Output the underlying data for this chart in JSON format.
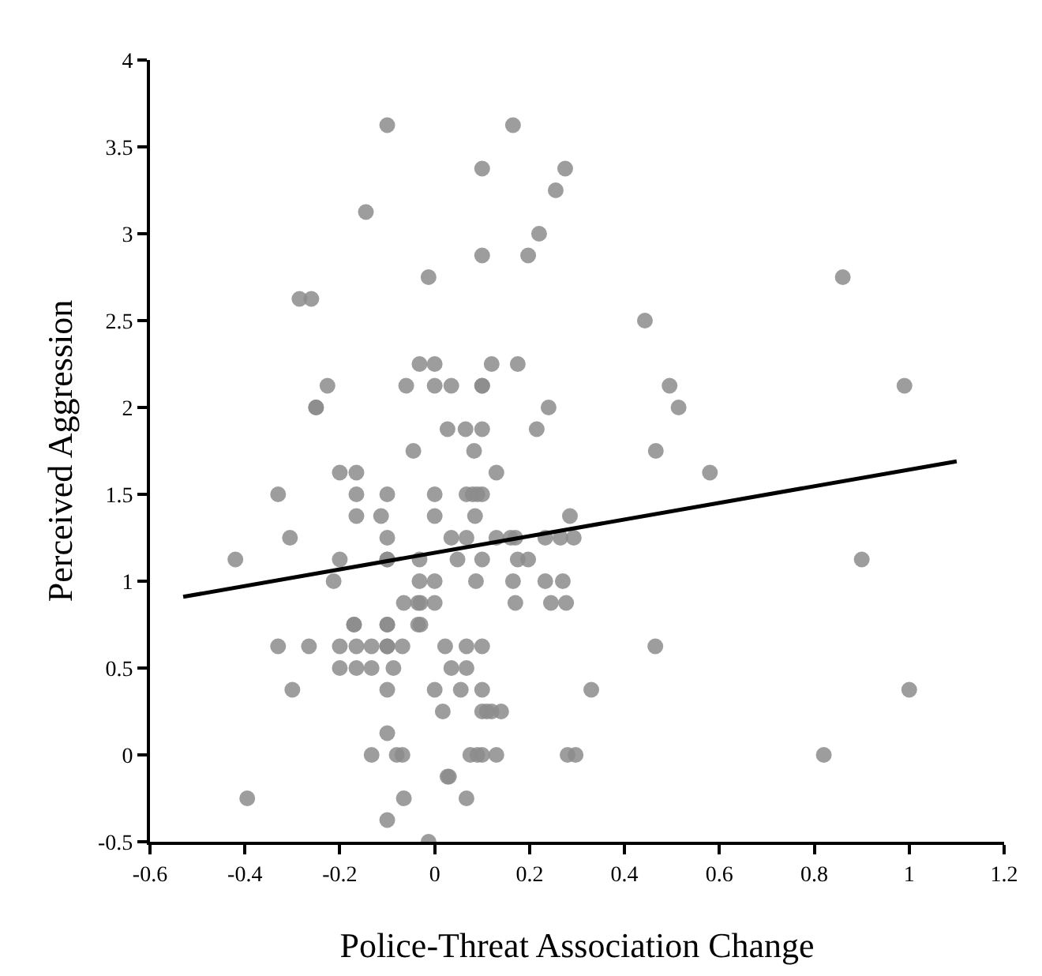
{
  "chart_data": {
    "type": "scatter",
    "xlabel": "Police-Threat Association Change",
    "ylabel": "Perceived Aggression",
    "xlim": [
      -0.6,
      1.2
    ],
    "xticks": [
      -0.6,
      -0.4,
      -0.2,
      0,
      0.2,
      0.4,
      0.6,
      0.8,
      1,
      1.2
    ],
    "ylim": [
      -0.5,
      4
    ],
    "yticks": [
      -0.5,
      0,
      0.5,
      1,
      1.5,
      2,
      2.5,
      3,
      3.5,
      4
    ],
    "grid": false,
    "legend": false,
    "marker": "circle",
    "series": [
      {
        "color": "#8c8c8c",
        "x": [
          -0.1,
          0.165,
          0.1,
          0.275,
          0.255,
          -0.145,
          0.22,
          0.1,
          0.197,
          -0.013,
          -0.285,
          -0.26,
          -0.032,
          0.0,
          0.12,
          0.175,
          -0.226,
          -0.06,
          0.0,
          0.035,
          0.1,
          0.1,
          -0.25,
          -0.25,
          0.24,
          0.027,
          0.065,
          0.1,
          0.215,
          -0.045,
          0.083,
          -0.2,
          -0.165,
          0.13,
          -0.33,
          -0.165,
          -0.1,
          0.0,
          0.067,
          0.08,
          0.09,
          0.1,
          -0.165,
          -0.113,
          0.0,
          0.085,
          0.285,
          -0.305,
          -0.1,
          0.035,
          0.067,
          0.13,
          0.16,
          0.17,
          0.233,
          0.265,
          0.293,
          -0.42,
          -0.2,
          -0.1,
          -0.1,
          -0.032,
          0.048,
          0.1,
          0.175,
          0.197,
          -0.213,
          -0.032,
          0.0,
          0.087,
          0.165,
          0.233,
          0.27,
          -0.065,
          -0.035,
          -0.03,
          0.0,
          0.17,
          0.245,
          0.277,
          -0.17,
          -0.17,
          -0.1,
          -0.1,
          -0.035,
          -0.03,
          -0.33,
          -0.265,
          -0.2,
          -0.165,
          -0.133,
          -0.1,
          -0.1,
          -0.068,
          0.022,
          0.067,
          0.1,
          0.465,
          -0.2,
          -0.165,
          -0.133,
          -0.087,
          0.035,
          0.067,
          -0.3,
          -0.1,
          0.0,
          0.055,
          0.1,
          0.33,
          1.0,
          0.017,
          0.1,
          0.11,
          0.12,
          0.14,
          -0.1,
          -0.133,
          -0.08,
          -0.068,
          0.075,
          0.09,
          0.1,
          0.13,
          0.28,
          0.297,
          0.82,
          0.027,
          0.03,
          -0.395,
          -0.065,
          0.067,
          -0.1,
          -0.013,
          0.86,
          0.443,
          0.495,
          0.99,
          0.514,
          0.466,
          0.58,
          0.9
        ],
        "values": [
          3.625,
          3.625,
          3.375,
          3.375,
          3.25,
          3.125,
          3.0,
          2.875,
          2.875,
          2.75,
          2.625,
          2.625,
          2.25,
          2.25,
          2.25,
          2.25,
          2.125,
          2.125,
          2.125,
          2.125,
          2.125,
          2.125,
          2.0,
          2.0,
          2.0,
          1.875,
          1.875,
          1.875,
          1.875,
          1.75,
          1.75,
          1.625,
          1.625,
          1.625,
          1.5,
          1.5,
          1.5,
          1.5,
          1.5,
          1.5,
          1.5,
          1.5,
          1.375,
          1.375,
          1.375,
          1.375,
          1.375,
          1.25,
          1.25,
          1.25,
          1.25,
          1.25,
          1.25,
          1.25,
          1.25,
          1.25,
          1.25,
          1.125,
          1.125,
          1.125,
          1.125,
          1.125,
          1.125,
          1.125,
          1.125,
          1.125,
          1.0,
          1.0,
          1.0,
          1.0,
          1.0,
          1.0,
          1.0,
          0.875,
          0.875,
          0.875,
          0.875,
          0.875,
          0.875,
          0.875,
          0.75,
          0.75,
          0.75,
          0.75,
          0.75,
          0.75,
          0.625,
          0.625,
          0.625,
          0.625,
          0.625,
          0.625,
          0.625,
          0.625,
          0.625,
          0.625,
          0.625,
          0.625,
          0.5,
          0.5,
          0.5,
          0.5,
          0.5,
          0.5,
          0.375,
          0.375,
          0.375,
          0.375,
          0.375,
          0.375,
          0.375,
          0.25,
          0.25,
          0.25,
          0.25,
          0.25,
          0.125,
          0.0,
          0.0,
          0.0,
          0.0,
          0.0,
          0.0,
          0.0,
          0.0,
          0.0,
          0.0,
          -0.125,
          -0.125,
          -0.25,
          -0.25,
          -0.25,
          -0.375,
          -0.5,
          2.75,
          2.5,
          2.125,
          2.125,
          2.0,
          1.75,
          1.625,
          1.125
        ]
      },
      {
        "type": "line",
        "color": "#000000",
        "marker": "none",
        "line_style": "solid",
        "x": [
          -0.53,
          1.1
        ],
        "values": [
          0.91,
          1.69
        ]
      }
    ]
  }
}
